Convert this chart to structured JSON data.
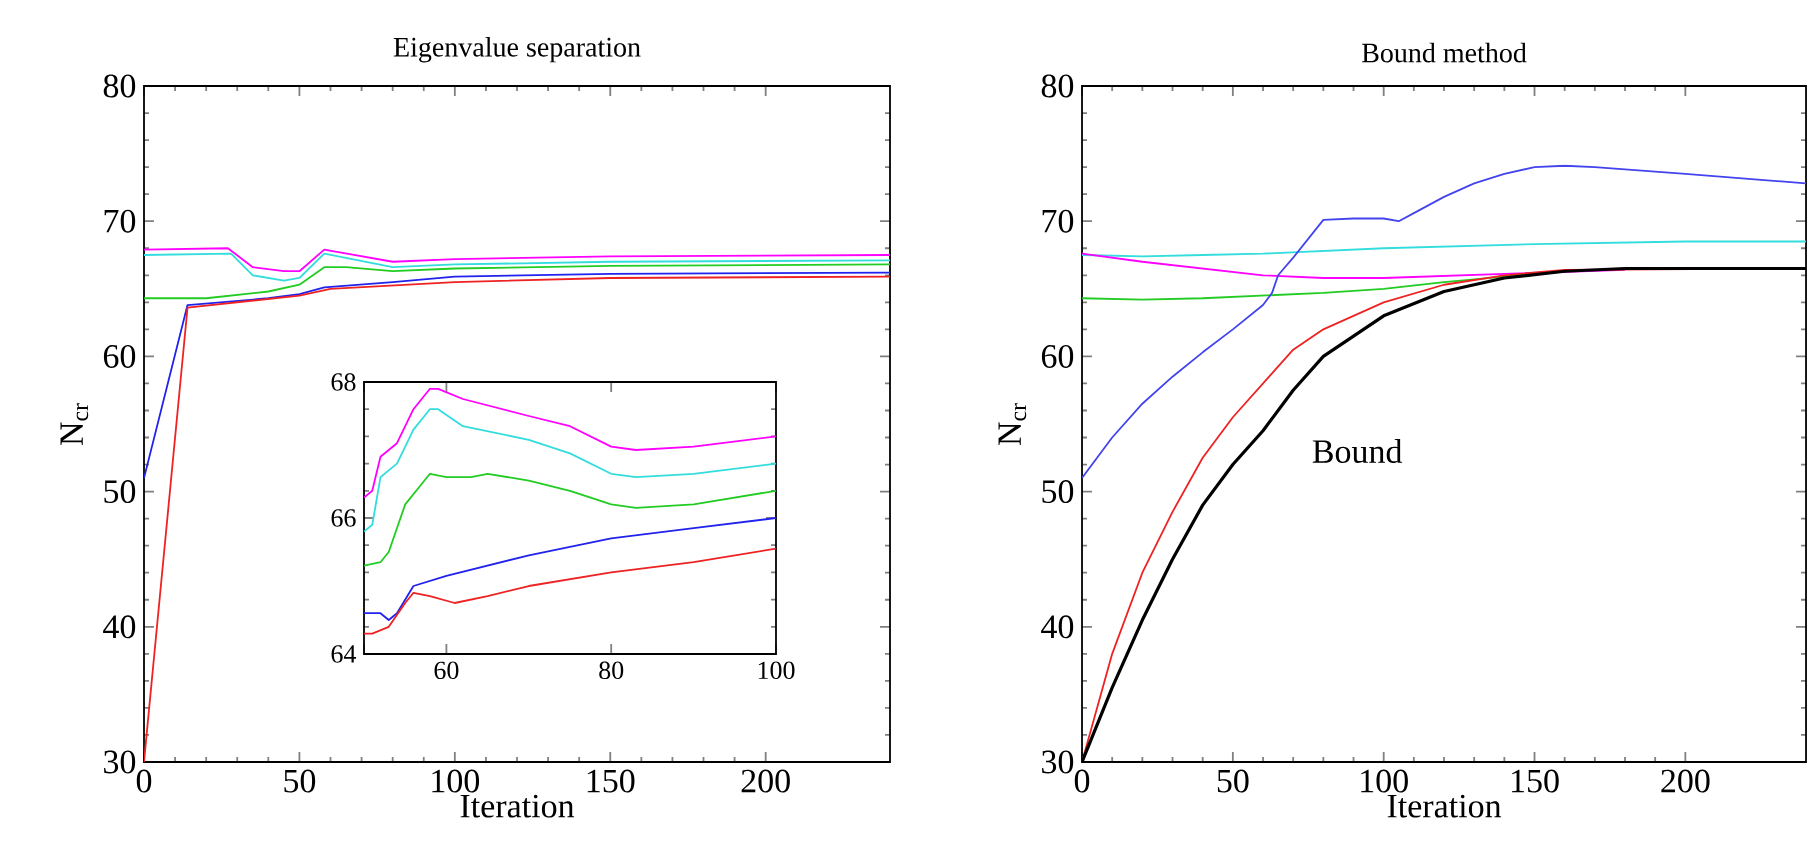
{
  "chart_data": [
    {
      "type": "line",
      "title": "Eigenvalue separation",
      "xlabel": "Iteration",
      "ylabel": "N$_{cr}$",
      "xlim": [
        0,
        240
      ],
      "ylim": [
        30,
        80
      ],
      "xticks": [
        0,
        50,
        100,
        150,
        200
      ],
      "yticks": [
        30,
        40,
        50,
        60,
        70,
        80
      ],
      "series": [
        {
          "color": "#ff00ff",
          "x": [
            0,
            27,
            35,
            45,
            50,
            58,
            80,
            100,
            150,
            240
          ],
          "values": [
            67.9,
            68.0,
            66.6,
            66.3,
            66.3,
            67.9,
            67.0,
            67.2,
            67.4,
            67.5
          ]
        },
        {
          "color": "#33dddd",
          "x": [
            0,
            28,
            35,
            45,
            50,
            58,
            80,
            100,
            150,
            240
          ],
          "values": [
            67.5,
            67.6,
            66.0,
            65.6,
            65.8,
            67.6,
            66.6,
            66.8,
            67.0,
            67.1
          ]
        },
        {
          "color": "#22cc22",
          "x": [
            0,
            20,
            40,
            50,
            58,
            65,
            80,
            100,
            150,
            240
          ],
          "values": [
            64.3,
            64.3,
            64.8,
            65.3,
            66.6,
            66.6,
            66.3,
            66.5,
            66.7,
            66.8
          ]
        },
        {
          "color": "#2222ee",
          "x": [
            0,
            14,
            40,
            50,
            58,
            80,
            100,
            150,
            240
          ],
          "values": [
            51,
            63.8,
            64.3,
            64.6,
            65.1,
            65.5,
            65.9,
            66.1,
            66.2
          ]
        },
        {
          "color": "#ee2222",
          "x": [
            0,
            14,
            50,
            60,
            100,
            150,
            240
          ],
          "values": [
            30,
            63.6,
            64.5,
            65.0,
            65.5,
            65.8,
            65.9
          ]
        }
      ]
    },
    {
      "type": "line",
      "xlim": [
        50,
        100
      ],
      "ylim": [
        64,
        68
      ],
      "xticks": [
        {
          "value": 50,
          "label": null
        },
        60,
        80,
        100
      ],
      "yticks": [
        64,
        66,
        68
      ],
      "series": [
        {
          "color": "#ff00ff",
          "x": [
            50,
            51,
            52,
            53,
            54,
            56,
            58,
            59,
            62,
            70,
            75,
            80,
            83,
            90,
            100
          ],
          "values": [
            66.3,
            66.4,
            66.9,
            67.0,
            67.1,
            67.6,
            67.9,
            67.9,
            67.75,
            67.5,
            67.35,
            67.05,
            67.0,
            67.05,
            67.2
          ]
        },
        {
          "color": "#33dddd",
          "x": [
            50,
            51,
            52,
            53,
            54,
            56,
            58,
            59,
            62,
            70,
            75,
            80,
            83,
            90,
            100
          ],
          "values": [
            65.8,
            65.9,
            66.6,
            66.7,
            66.8,
            67.3,
            67.6,
            67.6,
            67.35,
            67.15,
            66.95,
            66.65,
            66.6,
            66.65,
            66.8
          ]
        },
        {
          "color": "#22cc22",
          "x": [
            50,
            52,
            53,
            55,
            57,
            58,
            60,
            63,
            65,
            70,
            75,
            80,
            83,
            90,
            100
          ],
          "values": [
            65.3,
            65.35,
            65.5,
            66.2,
            66.5,
            66.65,
            66.6,
            66.6,
            66.65,
            66.55,
            66.4,
            66.2,
            66.15,
            66.2,
            66.4
          ]
        },
        {
          "color": "#2222ee",
          "x": [
            50,
            52,
            53,
            54,
            55,
            56,
            60,
            70,
            80,
            90,
            100
          ],
          "values": [
            64.6,
            64.6,
            64.5,
            64.6,
            64.8,
            65.0,
            65.15,
            65.45,
            65.7,
            65.85,
            66.0
          ]
        },
        {
          "color": "#ee2222",
          "x": [
            50,
            51,
            53,
            55,
            56,
            58,
            61,
            65,
            70,
            80,
            90,
            100
          ],
          "values": [
            64.3,
            64.3,
            64.4,
            64.75,
            64.9,
            64.85,
            64.75,
            64.85,
            65.0,
            65.2,
            65.35,
            65.55
          ]
        }
      ]
    },
    {
      "type": "line",
      "title": "Bound method",
      "xlabel": "Iteration",
      "ylabel": "N$_{cr}$",
      "xlim": [
        0,
        240
      ],
      "ylim": [
        30,
        80
      ],
      "xticks": [
        0,
        50,
        100,
        150,
        200
      ],
      "yticks": [
        30,
        40,
        50,
        60,
        70,
        80
      ],
      "annotations": [
        "Bound"
      ],
      "series": [
        {
          "color": "#33dddd",
          "x": [
            0,
            20,
            40,
            60,
            100,
            150,
            200,
            240
          ],
          "values": [
            67.5,
            67.4,
            67.5,
            67.6,
            68.0,
            68.3,
            68.5,
            68.5
          ]
        },
        {
          "color": "#ff00ff",
          "x": [
            0,
            20,
            40,
            60,
            80,
            100,
            140,
            180
          ],
          "values": [
            67.6,
            67.0,
            66.5,
            66.0,
            65.8,
            65.8,
            66.1,
            66.4
          ]
        },
        {
          "color": "#22cc22",
          "x": [
            0,
            20,
            40,
            60,
            80,
            100,
            120,
            140,
            160
          ],
          "values": [
            64.3,
            64.2,
            64.3,
            64.5,
            64.7,
            65.0,
            65.5,
            65.9,
            66.3
          ]
        },
        {
          "color": "#ee2222",
          "x": [
            0,
            10,
            20,
            30,
            40,
            50,
            60,
            70,
            80,
            100,
            120,
            140,
            160,
            240
          ],
          "values": [
            30,
            38,
            44,
            48.5,
            52.5,
            55.5,
            58,
            60.5,
            62,
            64,
            65.3,
            66,
            66.4,
            66.5
          ]
        },
        {
          "color": "#4444ee",
          "x": [
            0,
            10,
            20,
            30,
            40,
            50,
            60,
            63,
            65,
            70,
            80,
            90,
            100,
            105,
            110,
            120,
            130,
            140,
            150,
            160,
            170,
            200,
            240
          ],
          "values": [
            51,
            54,
            56.5,
            58.5,
            60.3,
            62,
            63.8,
            64.7,
            66,
            67.3,
            70.1,
            70.2,
            70.2,
            70,
            70.6,
            71.8,
            72.8,
            73.5,
            74,
            74.1,
            74,
            73.5,
            72.8
          ]
        },
        {
          "color": "#000000",
          "x": [
            0,
            10,
            20,
            30,
            40,
            50,
            60,
            70,
            80,
            100,
            120,
            140,
            160,
            180,
            240
          ],
          "values": [
            30,
            35.5,
            40.5,
            45,
            49,
            52,
            54.5,
            57.5,
            60,
            63,
            64.8,
            65.8,
            66.3,
            66.5,
            66.5
          ]
        }
      ]
    }
  ]
}
